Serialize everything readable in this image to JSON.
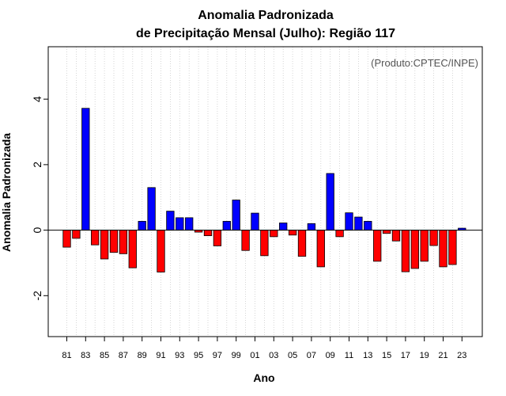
{
  "chart_data": {
    "type": "bar",
    "title_line1": "Anomalia Padronizada",
    "title_line2": "de Precipitação Mensal (Julho): Região 117",
    "credit": "(Produto:CPTEC/INPE)",
    "xlabel": "Ano",
    "ylabel": "Anomalia Padronizada",
    "ylim": [
      -3.25,
      5.6
    ],
    "yticks": [
      -2,
      0,
      2,
      4
    ],
    "ytick_labels": [
      "-2",
      "0",
      "2",
      "4"
    ],
    "xtick_labels": [
      "81",
      "83",
      "85",
      "87",
      "89",
      "91",
      "93",
      "95",
      "97",
      "99",
      "01",
      "03",
      "05",
      "07",
      "09",
      "11",
      "13",
      "15",
      "17",
      "19",
      "21",
      "23"
    ],
    "grid": "vertical dotted",
    "positive_color": "#0000ff",
    "negative_color": "#ff0000",
    "categories": [
      "1981",
      "1982",
      "1983",
      "1984",
      "1985",
      "1986",
      "1987",
      "1988",
      "1989",
      "1990",
      "1991",
      "1992",
      "1993",
      "1994",
      "1995",
      "1996",
      "1997",
      "1998",
      "1999",
      "2000",
      "2001",
      "2002",
      "2003",
      "2004",
      "2005",
      "2006",
      "2007",
      "2008",
      "2009",
      "2010",
      "2011",
      "2012",
      "2013",
      "2014",
      "2015",
      "2016",
      "2017",
      "2018",
      "2019",
      "2020",
      "2021",
      "2022",
      "2023"
    ],
    "values": [
      -0.52,
      -0.25,
      3.72,
      -0.45,
      -0.88,
      -0.68,
      -0.72,
      -1.15,
      0.27,
      1.3,
      -1.28,
      0.58,
      0.38,
      0.38,
      -0.06,
      -0.17,
      -0.48,
      0.27,
      0.92,
      -0.62,
      0.52,
      -0.78,
      -0.2,
      0.22,
      -0.15,
      -0.8,
      0.2,
      -1.12,
      1.73,
      -0.2,
      0.53,
      0.4,
      0.27,
      -0.95,
      -0.1,
      -0.33,
      -1.27,
      -1.17,
      -0.95,
      -0.47,
      -1.12,
      -1.05,
      0.06
    ]
  }
}
